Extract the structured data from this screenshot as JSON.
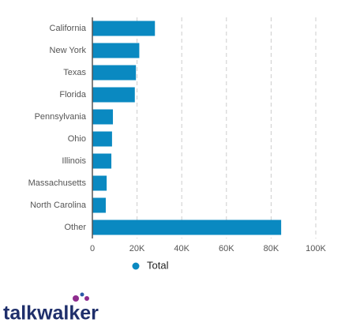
{
  "chart_data": {
    "type": "bar",
    "orientation": "horizontal",
    "categories": [
      "California",
      "New York",
      "Texas",
      "Florida",
      "Pennsylvania",
      "Ohio",
      "Illinois",
      "Massachusetts",
      "North Carolina",
      "Other"
    ],
    "series": [
      {
        "name": "Total",
        "color": "#0a89c1",
        "values": [
          28000,
          21000,
          19500,
          19000,
          9200,
          8800,
          8500,
          6400,
          6000,
          84500
        ]
      }
    ],
    "xlim": [
      0,
      100000
    ],
    "xticks": [
      0,
      {
        "value": 20000,
        "label": "20K"
      },
      {
        "value": 40000,
        "label": "40K"
      },
      {
        "value": 60000,
        "label": "60K"
      },
      {
        "value": 80000,
        "label": "80K"
      },
      {
        "value": 100000,
        "label": "100K"
      }
    ],
    "grid": true,
    "legend": "bottom"
  },
  "brand": "talkwalker"
}
